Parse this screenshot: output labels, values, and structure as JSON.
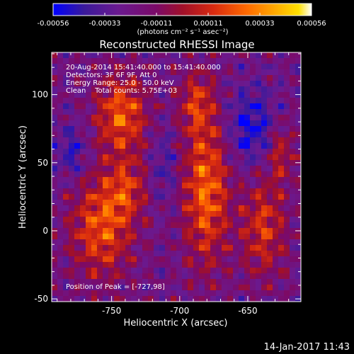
{
  "colorbar": {
    "tick_labels": [
      "-0.00056",
      "-0.00033",
      "-0.00011",
      "0.00011",
      "0.00033",
      "0.00056"
    ],
    "unit_label": "(photons cm⁻² s⁻¹ asec⁻²)",
    "colormap_stops": [
      "#0000ff",
      "#4b0082",
      "#8a2be2",
      "#7b0a68",
      "#c0102a",
      "#e03010",
      "#ff6a00",
      "#ffb000",
      "#ffe000",
      "#ffffff"
    ]
  },
  "chart_data": {
    "type": "heatmap",
    "title": "Reconstructed RHESSI Image",
    "xlabel": "Heliocentric X (arcsec)",
    "ylabel": "Heliocentric Y (arcsec)",
    "x_ticks": [
      "-750",
      "-700",
      "-650"
    ],
    "y_ticks": [
      "100",
      "50",
      "0",
      "-50"
    ],
    "x_tick_values": [
      -750,
      -700,
      -650
    ],
    "y_tick_values": [
      100,
      50,
      0,
      -50
    ],
    "xlim": [
      -794,
      -611
    ],
    "ylim": [
      -52,
      131
    ],
    "value_range": [
      -0.00056,
      0.00056
    ],
    "info_lines": [
      "20-Aug-2014 15:41:40.000 to 15:41:40.000",
      "Detectors: 3F 6F 9F, Att 0",
      "Energy Range: 25.0 - 50.0 keV",
      "Clean    Total counts: 5.75E+03"
    ],
    "peak_annotation": "Position of Peak = [-727,98]"
  },
  "footer": {
    "timestamp": "14-Jan-2017 11:43"
  }
}
